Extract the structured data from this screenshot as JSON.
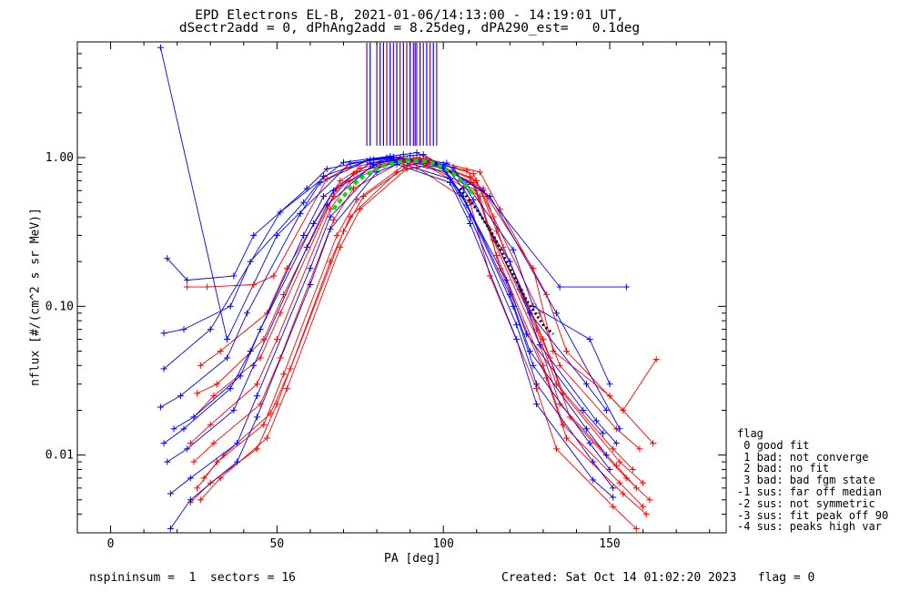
{
  "title": {
    "line1": "EPD Electrons EL-B, 2021-01-06/14:13:00 - 14:19:01 UT,",
    "line2": "dSectr2add = 0, dPhAng2add = 8.25deg, dPA290_est=   0.1deg"
  },
  "footer": {
    "left": "nspininsum =  1  sectors = 16",
    "right": "Created: Sat Oct 14 01:02:20 2023   flag = 0"
  },
  "legend": {
    "title": "flag",
    "items": [
      " 0 good fit",
      " 1 bad: not converge",
      " 2 bad: no fit",
      " 3 bad: bad fgm state",
      "-1 sus: far off median",
      "-2 sus: not symmetric",
      "-3 sus: fit peak off 90",
      "-4 sus: peaks high var"
    ]
  },
  "chart_data": {
    "type": "line",
    "log_y": true,
    "xlabel": "PA [deg]",
    "ylabel": "nflux [#/(cm^2 s sr MeV)]",
    "xlim": [
      -10,
      185
    ],
    "ylim": [
      0.003,
      6.0
    ],
    "x_ticks": [
      0,
      50,
      100,
      150
    ],
    "y_ticks": [
      {
        "value": 0.01,
        "label": "0.01"
      },
      {
        "value": 0.1,
        "label": "0.10"
      },
      {
        "value": 1.0,
        "label": "1.00"
      }
    ],
    "colors": {
      "red": "#ff0000",
      "blue": "#0000ff",
      "purple": "#7f007f",
      "green": "#00e000",
      "black": "#000000"
    },
    "series": [
      {
        "color": "red",
        "x": [
          25,
          31,
          45,
          51,
          67,
          73,
          87,
          93,
          109,
          115,
          129,
          135,
          152,
          158
        ],
        "values": [
          0.009,
          0.012,
          0.022,
          0.045,
          0.38,
          0.62,
          0.93,
          0.97,
          0.68,
          0.28,
          0.055,
          0.022,
          0.0085,
          0.006
        ]
      },
      {
        "color": "red",
        "x": [
          26,
          32,
          46,
          52,
          68,
          74,
          88,
          94,
          110,
          116,
          130,
          136,
          153,
          160
        ],
        "values": [
          0.006,
          0.009,
          0.016,
          0.035,
          0.3,
          0.52,
          0.88,
          0.92,
          0.6,
          0.22,
          0.04,
          0.016,
          0.0065,
          0.0045
        ]
      },
      {
        "color": "red",
        "x": [
          24,
          30,
          44,
          50,
          66,
          72,
          86,
          92,
          108,
          114,
          128,
          134,
          151,
          157
        ],
        "values": [
          0.012,
          0.016,
          0.03,
          0.06,
          0.45,
          0.7,
          0.96,
          1.0,
          0.74,
          0.33,
          0.07,
          0.03,
          0.011,
          0.008
        ]
      },
      {
        "color": "red",
        "x": [
          27,
          33,
          47,
          53,
          69,
          75,
          89,
          95,
          111,
          117,
          131,
          137,
          154,
          161
        ],
        "values": [
          0.005,
          0.007,
          0.013,
          0.028,
          0.25,
          0.45,
          0.84,
          0.88,
          0.55,
          0.18,
          0.033,
          0.013,
          0.0055,
          0.004
        ]
      },
      {
        "color": "red",
        "x": [
          25,
          31,
          45,
          51,
          67,
          73,
          87,
          93,
          109,
          115,
          129,
          135,
          152,
          159
        ],
        "values": [
          0.018,
          0.025,
          0.045,
          0.09,
          0.55,
          0.78,
          0.98,
          0.99,
          0.78,
          0.4,
          0.09,
          0.04,
          0.015,
          0.011
        ]
      },
      {
        "color": "red",
        "x": [
          23,
          29,
          43,
          49,
          65,
          71,
          85,
          91,
          107,
          113,
          127,
          133,
          150,
          163
        ],
        "values": [
          0.135,
          0.135,
          0.14,
          0.16,
          0.72,
          0.85,
          0.97,
          0.98,
          0.82,
          0.55,
          0.18,
          0.05,
          0.025,
          0.012
        ]
      },
      {
        "color": "red",
        "x": [
          28,
          34,
          48,
          54,
          70,
          76,
          90,
          96,
          112,
          118,
          132,
          138,
          155,
          162
        ],
        "values": [
          0.007,
          0.01,
          0.019,
          0.038,
          0.32,
          0.55,
          0.9,
          0.93,
          0.62,
          0.25,
          0.045,
          0.018,
          0.007,
          0.005
        ]
      },
      {
        "color": "red",
        "x": [
          26,
          32,
          46,
          52,
          68,
          74,
          88,
          94,
          110,
          116,
          130,
          136,
          153,
          160
        ],
        "values": [
          0.026,
          0.03,
          0.06,
          0.12,
          0.62,
          0.8,
          0.95,
          0.96,
          0.7,
          0.32,
          0.06,
          0.026,
          0.009,
          0.0065
        ]
      },
      {
        "color": "red",
        "x": [
          24,
          30,
          44,
          50,
          66,
          72,
          86,
          92,
          108,
          114,
          128,
          134,
          151,
          158
        ],
        "values": [
          0.0048,
          0.0065,
          0.011,
          0.022,
          0.2,
          0.4,
          0.8,
          0.86,
          0.5,
          0.16,
          0.028,
          0.011,
          0.0045,
          0.0032
        ]
      },
      {
        "color": "red",
        "x": [
          27,
          33,
          47,
          53,
          69,
          75,
          89,
          95,
          111,
          117,
          131,
          137,
          154,
          164
        ],
        "values": [
          0.04,
          0.05,
          0.09,
          0.18,
          0.7,
          0.85,
          0.97,
          0.98,
          0.8,
          0.45,
          0.12,
          0.05,
          0.02,
          0.044
        ]
      },
      {
        "color": "blue",
        "x": [
          16,
          22,
          36,
          42,
          58,
          64,
          78,
          84,
          100,
          106,
          120,
          126,
          143,
          149
        ],
        "values": [
          0.012,
          0.015,
          0.028,
          0.05,
          0.3,
          0.55,
          0.92,
          0.98,
          0.85,
          0.55,
          0.12,
          0.05,
          0.015,
          0.01
        ]
      },
      {
        "color": "blue",
        "x": [
          17,
          23,
          37,
          43,
          59,
          65,
          79,
          85,
          101,
          107,
          121,
          127,
          144,
          150
        ],
        "values": [
          0.009,
          0.011,
          0.02,
          0.04,
          0.25,
          0.48,
          0.9,
          0.96,
          0.8,
          0.48,
          0.1,
          0.04,
          0.012,
          0.008
        ]
      },
      {
        "color": "blue",
        "x": [
          16,
          22,
          36,
          42,
          58,
          64,
          78,
          84,
          100,
          106,
          120,
          126,
          143,
          149
        ],
        "values": [
          0.066,
          0.07,
          0.1,
          0.2,
          0.5,
          0.75,
          0.97,
          1.02,
          0.9,
          0.62,
          0.2,
          0.09,
          0.03,
          0.02
        ]
      },
      {
        "color": "blue",
        "x": [
          18,
          24,
          38,
          44,
          60,
          66,
          80,
          86,
          102,
          108,
          122,
          128,
          145,
          151
        ],
        "values": [
          0.0055,
          0.007,
          0.012,
          0.025,
          0.18,
          0.4,
          0.85,
          0.93,
          0.72,
          0.4,
          0.075,
          0.03,
          0.009,
          0.006
        ]
      },
      {
        "color": "blue",
        "x": [
          15,
          21,
          35,
          41,
          57,
          63,
          77,
          83,
          99,
          105,
          119,
          125,
          142,
          148
        ],
        "values": [
          0.021,
          0.025,
          0.045,
          0.09,
          0.42,
          0.68,
          0.95,
          1.0,
          0.88,
          0.58,
          0.15,
          0.065,
          0.02,
          0.014
        ]
      },
      {
        "color": "blue",
        "x": [
          19,
          25,
          39,
          45,
          61,
          67,
          81,
          87,
          103,
          109,
          123,
          129,
          146,
          152
        ],
        "values": [
          0.015,
          0.018,
          0.034,
          0.07,
          0.36,
          0.6,
          0.93,
          0.99,
          0.86,
          0.52,
          0.13,
          0.055,
          0.017,
          0.012
        ]
      },
      {
        "color": "blue",
        "x": [
          16,
          30,
          51,
          70,
          88,
          92,
          112,
          135,
          155
        ],
        "values": [
          0.038,
          0.07,
          0.43,
          0.93,
          1.05,
          1.08,
          0.6,
          0.135,
          0.135
        ]
      },
      {
        "color": "blue",
        "x": [
          15,
          35,
          50,
          72,
          90,
          94,
          114,
          134,
          153
        ],
        "values": [
          5.5,
          0.06,
          0.3,
          0.92,
          1.03,
          1.05,
          0.55,
          0.09,
          0.015
        ]
      },
      {
        "color": "blue",
        "x": [
          18,
          24,
          38,
          44,
          60,
          66,
          80,
          86,
          102,
          108,
          122,
          128,
          145,
          151
        ],
        "values": [
          0.0032,
          0.005,
          0.009,
          0.018,
          0.14,
          0.33,
          0.8,
          0.9,
          0.68,
          0.36,
          0.06,
          0.022,
          0.0068,
          0.0052
        ]
      },
      {
        "color": "blue",
        "x": [
          17,
          23,
          37,
          43,
          59,
          65,
          79,
          85,
          101,
          107,
          121,
          127,
          144,
          150
        ],
        "values": [
          0.21,
          0.15,
          0.16,
          0.3,
          0.62,
          0.84,
          0.97,
          1.01,
          0.92,
          0.66,
          0.24,
          0.1,
          0.06,
          0.03
        ]
      }
    ],
    "fit_curve": {
      "color": "green",
      "style": "dashed",
      "x": [
        67,
        70,
        73,
        76,
        79,
        82,
        85,
        88,
        91,
        94,
        97,
        100,
        103,
        106,
        109
      ],
      "values": [
        0.45,
        0.55,
        0.66,
        0.75,
        0.82,
        0.88,
        0.92,
        0.95,
        0.96,
        0.95,
        0.92,
        0.86,
        0.78,
        0.68,
        0.57
      ]
    },
    "black_dotted": {
      "color": "black",
      "style": "dotted",
      "x": [
        105,
        110,
        115,
        120,
        125,
        130,
        133
      ],
      "values": [
        0.62,
        0.45,
        0.3,
        0.18,
        0.11,
        0.075,
        0.065
      ]
    },
    "vertical_ticks": {
      "y_range": [
        1.2,
        6.0
      ],
      "purple_x": [
        77,
        80,
        83,
        85,
        87,
        89,
        91,
        92,
        94,
        96,
        98
      ],
      "blue_x": [
        78,
        81,
        82,
        84,
        86,
        88,
        90,
        91.5,
        93,
        95,
        97
      ]
    }
  }
}
